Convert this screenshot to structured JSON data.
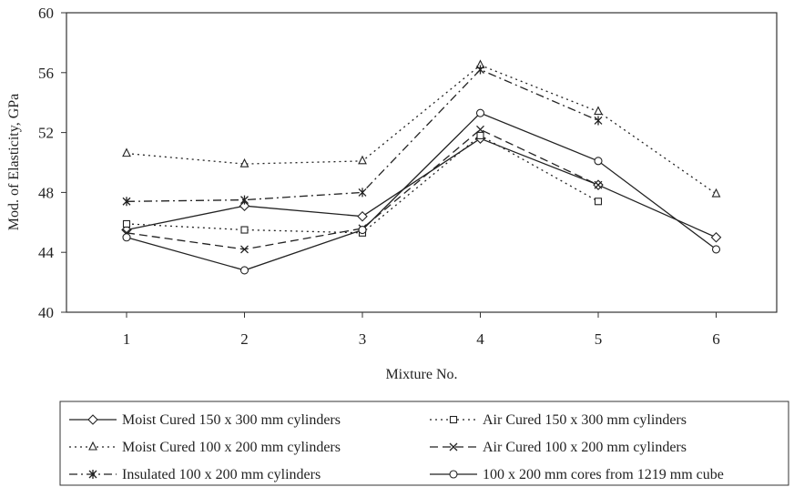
{
  "chart_data": {
    "type": "line",
    "title": "",
    "xlabel": "Mixture No.",
    "ylabel": "Mod. of Elasticity, GPa",
    "categories": [
      "1",
      "2",
      "3",
      "4",
      "5",
      "6"
    ],
    "ylim": [
      40,
      60
    ],
    "yticks": [
      40,
      44,
      48,
      52,
      56,
      60
    ],
    "ytick_labels": [
      "40",
      "44",
      "48",
      "52",
      "56",
      "60"
    ],
    "grid": false,
    "legend_position": "bottom",
    "series": [
      {
        "name": "Moist Cured 150 x 300 mm cylinders",
        "marker": "diamond",
        "dash": "solid",
        "values": [
          45.5,
          47.1,
          46.4,
          51.6,
          48.5,
          45.0
        ]
      },
      {
        "name": "Air Cured 150 x 300 mm cylinders",
        "marker": "square",
        "dash": "dotted",
        "values": [
          45.9,
          45.5,
          45.3,
          51.8,
          47.4,
          null
        ]
      },
      {
        "name": "Moist Cured 100 x 200 mm cylinders",
        "marker": "triangle",
        "dash": "dotted",
        "values": [
          50.6,
          49.9,
          50.1,
          56.5,
          53.4,
          47.9
        ]
      },
      {
        "name": "Air Cured 100 x 200 mm cylinders",
        "marker": "x",
        "dash": "dash",
        "values": [
          45.3,
          44.2,
          45.6,
          52.2,
          48.5,
          null
        ]
      },
      {
        "name": "Insulated 100 x 200 mm cylinders",
        "marker": "star",
        "dash": "dashdot",
        "values": [
          47.4,
          47.5,
          48.0,
          56.2,
          52.8,
          null
        ]
      },
      {
        "name": "100 x 200 mm cores from 1219 mm cube",
        "marker": "circle",
        "dash": "solid",
        "values": [
          45.0,
          42.8,
          45.5,
          53.3,
          50.1,
          44.2
        ]
      }
    ]
  }
}
